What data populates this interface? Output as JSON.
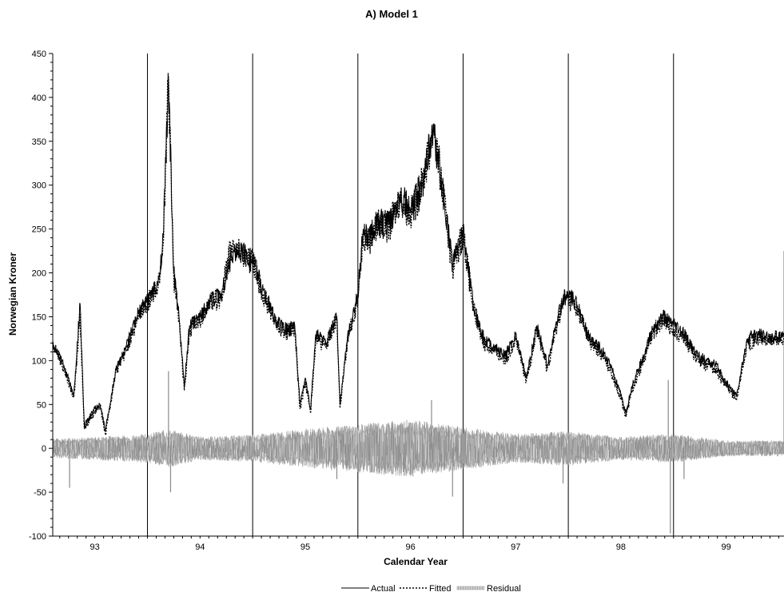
{
  "chart_data": {
    "type": "line",
    "title": "A) Model 1",
    "xlabel": "Calendar Year",
    "ylabel": "Norwegian Kroner",
    "ylim": [
      -100,
      450
    ],
    "yticks": [
      -100,
      -50,
      0,
      50,
      100,
      150,
      200,
      250,
      300,
      350,
      400,
      450
    ],
    "xlim": [
      1992.6,
      1999.55
    ],
    "categories": [
      "93",
      "94",
      "95",
      "96",
      "97",
      "98",
      "99"
    ],
    "year_boundaries": [
      1993.5,
      1994.5,
      1995.5,
      1996.5,
      1997.5,
      1998.5
    ],
    "grid": false,
    "legend": "bottom-center",
    "series": [
      {
        "name": "Actual",
        "style": "solid",
        "color": "#000000",
        "x": [
          1992.6,
          1992.7,
          1992.76,
          1992.8,
          1992.86,
          1992.9,
          1993.0,
          1993.05,
          1993.1,
          1993.2,
          1993.3,
          1993.4,
          1993.5,
          1993.6,
          1993.65,
          1993.7,
          1993.75,
          1993.8,
          1993.85,
          1993.9,
          1994.0,
          1994.1,
          1994.2,
          1994.3,
          1994.4,
          1994.5,
          1994.6,
          1994.7,
          1994.8,
          1994.9,
          1994.95,
          1995.0,
          1995.05,
          1995.1,
          1995.2,
          1995.3,
          1995.33,
          1995.4,
          1995.5,
          1995.55,
          1995.6,
          1995.7,
          1995.8,
          1995.9,
          1996.0,
          1996.1,
          1996.2,
          1996.22,
          1996.3,
          1996.4,
          1996.5,
          1996.6,
          1996.7,
          1996.8,
          1996.9,
          1997.0,
          1997.1,
          1997.2,
          1997.3,
          1997.4,
          1997.45,
          1997.5,
          1997.6,
          1997.7,
          1997.8,
          1997.9,
          1998.0,
          1998.05,
          1998.1,
          1998.2,
          1998.3,
          1998.4,
          1998.45,
          1998.5,
          1998.6,
          1998.7,
          1998.8,
          1998.9,
          1999.0,
          1999.1,
          1999.2,
          1999.3,
          1999.4,
          1999.55
        ],
        "y": [
          122,
          95,
          75,
          60,
          165,
          25,
          45,
          50,
          20,
          90,
          115,
          150,
          170,
          185,
          240,
          420,
          200,
          150,
          70,
          140,
          150,
          170,
          175,
          220,
          225,
          215,
          180,
          150,
          135,
          140,
          50,
          80,
          45,
          130,
          120,
          150,
          50,
          125,
          175,
          250,
          240,
          260,
          255,
          290,
          270,
          300,
          355,
          360,
          300,
          210,
          250,
          160,
          125,
          115,
          105,
          130,
          80,
          140,
          95,
          150,
          170,
          175,
          160,
          125,
          115,
          95,
          60,
          40,
          70,
          100,
          135,
          150,
          145,
          140,
          130,
          110,
          100,
          95,
          75,
          60,
          125,
          130,
          125,
          130
        ]
      },
      {
        "name": "Fitted",
        "style": "dotted",
        "color": "#000000",
        "x": [
          1992.6,
          1992.7,
          1992.76,
          1992.8,
          1992.86,
          1992.9,
          1993.0,
          1993.05,
          1993.1,
          1993.2,
          1993.3,
          1993.4,
          1993.5,
          1993.6,
          1993.65,
          1993.7,
          1993.75,
          1993.8,
          1993.85,
          1993.9,
          1994.0,
          1994.1,
          1994.2,
          1994.3,
          1994.4,
          1994.5,
          1994.6,
          1994.7,
          1994.8,
          1994.9,
          1994.95,
          1995.0,
          1995.05,
          1995.1,
          1995.2,
          1995.3,
          1995.33,
          1995.4,
          1995.5,
          1995.55,
          1995.6,
          1995.7,
          1995.8,
          1995.9,
          1996.0,
          1996.1,
          1996.2,
          1996.22,
          1996.3,
          1996.4,
          1996.5,
          1996.6,
          1996.7,
          1996.8,
          1996.9,
          1997.0,
          1997.1,
          1997.2,
          1997.3,
          1997.4,
          1997.45,
          1997.5,
          1997.6,
          1997.7,
          1997.8,
          1997.9,
          1998.0,
          1998.05,
          1998.1,
          1998.2,
          1998.3,
          1998.4,
          1998.45,
          1998.5,
          1998.6,
          1998.7,
          1998.8,
          1998.9,
          1999.0,
          1999.1,
          1999.2,
          1999.3,
          1999.4,
          1999.55
        ],
        "y": [
          120,
          92,
          72,
          58,
          150,
          22,
          42,
          48,
          16,
          88,
          112,
          146,
          166,
          182,
          232,
          424,
          195,
          146,
          66,
          136,
          146,
          166,
          172,
          232,
          222,
          212,
          176,
          146,
          132,
          136,
          45,
          76,
          40,
          126,
          116,
          148,
          46,
          122,
          172,
          246,
          236,
          256,
          252,
          286,
          266,
          296,
          350,
          370,
          296,
          206,
          246,
          156,
          120,
          110,
          100,
          126,
          76,
          136,
          90,
          146,
          166,
          172,
          156,
          122,
          110,
          90,
          56,
          36,
          66,
          96,
          132,
          146,
          142,
          136,
          126,
          106,
          96,
          90,
          70,
          56,
          120,
          126,
          122,
          126
        ]
      },
      {
        "name": "Residual",
        "style": "hatched",
        "color": "#9a9a9a",
        "amplitude_envelope": {
          "x": [
            1992.6,
            1993.0,
            1993.5,
            1993.7,
            1994.0,
            1994.5,
            1995.0,
            1995.5,
            1996.0,
            1996.5,
            1997.0,
            1997.5,
            1998.0,
            1998.5,
            1999.0,
            1999.55
          ],
          "y": [
            10,
            12,
            15,
            20,
            12,
            14,
            20,
            25,
            30,
            22,
            15,
            18,
            12,
            15,
            8,
            8
          ]
        },
        "spikes": {
          "x": [
            1992.76,
            1993.7,
            1993.72,
            1995.3,
            1996.2,
            1996.4,
            1997.45,
            1998.45,
            1998.47,
            1998.6,
            1999.55
          ],
          "y": [
            -45,
            88,
            -50,
            -35,
            55,
            -55,
            -40,
            78,
            -97,
            -35,
            225
          ]
        }
      }
    ]
  }
}
